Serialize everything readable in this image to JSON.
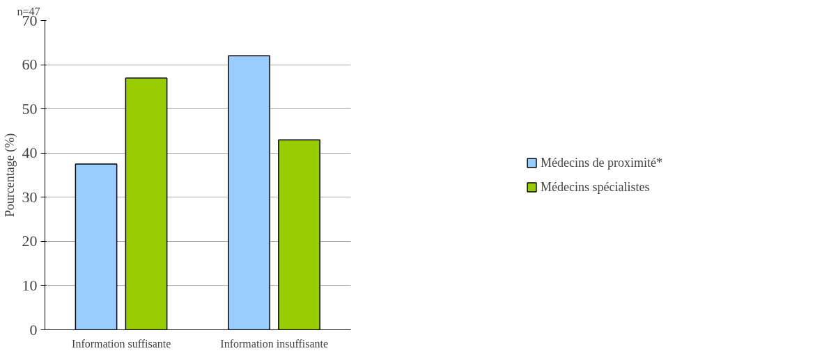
{
  "chart_data": {
    "type": "bar",
    "ylabel": "Pourcentage (%)",
    "annotations": [
      "n=47"
    ],
    "categories": [
      "Information suffisante",
      "Information insuffisante"
    ],
    "series": [
      {
        "name": "Médecins de proximité*",
        "color": "#99ccff",
        "values": [
          37.5,
          62
        ]
      },
      {
        "name": "Médecins spécialistes",
        "color": "#99cc00",
        "values": [
          57,
          43
        ]
      }
    ],
    "ylim": [
      0,
      70
    ],
    "yticks": [
      0,
      10,
      20,
      30,
      40,
      50,
      60,
      70
    ],
    "grid": "y",
    "legend": "right"
  }
}
